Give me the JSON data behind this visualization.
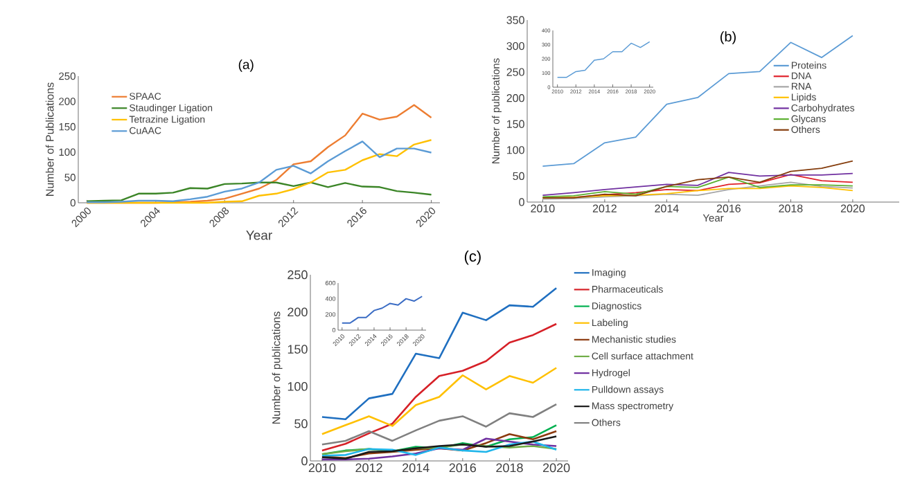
{
  "chart_data": [
    {
      "type": "line",
      "title": "(a)",
      "xlabel": "Year",
      "ylabel": "Number of Publications",
      "x": [
        2000,
        2001,
        2002,
        2003,
        2004,
        2005,
        2006,
        2007,
        2008,
        2009,
        2010,
        2011,
        2012,
        2013,
        2014,
        2015,
        2016,
        2017,
        2018,
        2019,
        2020
      ],
      "xlim": [
        1999.5,
        2020.5
      ],
      "ylim": [
        0,
        250
      ],
      "xticks": [
        2000,
        2004,
        2008,
        2012,
        2016,
        2020
      ],
      "yticks": [
        0,
        50,
        100,
        150,
        200,
        250
      ],
      "legend": "top left",
      "series": [
        {
          "name": "SPAAC",
          "color": "#ed7d31",
          "values": [
            0,
            0,
            0,
            0,
            0,
            1,
            2,
            4,
            8,
            18,
            28,
            45,
            76,
            82,
            110,
            133,
            176,
            164,
            170,
            193,
            168
          ]
        },
        {
          "name": "Staudinger Ligation",
          "color": "#3b8527",
          "values": [
            3,
            4,
            5,
            18,
            18,
            20,
            29,
            28,
            37,
            38,
            40,
            40,
            33,
            40,
            31,
            39,
            32,
            31,
            23,
            20,
            16
          ]
        },
        {
          "name": "Tetrazine Ligation",
          "color": "#ffc000",
          "values": [
            0,
            0,
            0,
            0,
            0,
            0,
            0,
            0,
            2,
            3,
            14,
            18,
            27,
            40,
            60,
            65,
            84,
            96,
            92,
            115,
            124
          ]
        },
        {
          "name": "CuAAC",
          "color": "#5b9bd5",
          "values": [
            1,
            1,
            2,
            4,
            4,
            3,
            7,
            12,
            22,
            28,
            40,
            65,
            73,
            58,
            82,
            102,
            121,
            90,
            107,
            107,
            99
          ]
        }
      ]
    },
    {
      "type": "line",
      "title": "(b)",
      "xlabel": "Year",
      "ylabel": "Number of publications",
      "x": [
        2010,
        2011,
        2012,
        2013,
        2014,
        2015,
        2016,
        2017,
        2018,
        2019,
        2020
      ],
      "xlim": [
        2009.5,
        2021.5
      ],
      "ylim": [
        0,
        350
      ],
      "xticks": [
        2010,
        2012,
        2014,
        2016,
        2018,
        2020
      ],
      "yticks": [
        0,
        50,
        100,
        150,
        200,
        250,
        300,
        350
      ],
      "legend": "right",
      "series": [
        {
          "name": "Proteins",
          "color": "#5b9bd5",
          "values": [
            69,
            74,
            114,
            125,
            188,
            201,
            247,
            251,
            307,
            278,
            320
          ]
        },
        {
          "name": "DNA",
          "color": "#e0202a",
          "values": [
            8,
            9,
            14,
            18,
            24,
            22,
            34,
            37,
            53,
            41,
            38
          ]
        },
        {
          "name": "RNA",
          "color": "#a5a5a5",
          "values": [
            6,
            7,
            10,
            12,
            15,
            13,
            24,
            null,
            38,
            30,
            27
          ]
        },
        {
          "name": "Lipids",
          "color": "#ffc000",
          "values": [
            8,
            9,
            12,
            13,
            16,
            22,
            26,
            26,
            31,
            28,
            22
          ]
        },
        {
          "name": "Carbohydrates",
          "color": "#7030a0",
          "values": [
            13,
            18,
            24,
            29,
            34,
            32,
            57,
            50,
            52,
            52,
            55
          ]
        },
        {
          "name": "Glycans",
          "color": "#5ab030",
          "values": [
            10,
            12,
            20,
            15,
            30,
            28,
            48,
            28,
            33,
            33,
            31
          ]
        },
        {
          "name": "Others",
          "color": "#843c0c",
          "values": [
            8,
            8,
            15,
            12,
            30,
            43,
            48,
            38,
            59,
            65,
            79
          ]
        }
      ]
    },
    {
      "type": "line",
      "x": [
        2010,
        2011,
        2012,
        2013,
        2014,
        2015,
        2016,
        2017,
        2018,
        2019,
        2020
      ],
      "xlim": [
        2009.5,
        2020.4
      ],
      "ylim": [
        0,
        400
      ],
      "xticks": [
        2010,
        2012,
        2014,
        2016,
        2018,
        2020
      ],
      "yticks": [
        0,
        100,
        200,
        300,
        400
      ],
      "series": [
        {
          "color": "#5b9bd5",
          "values": [
            70,
            70,
            110,
            120,
            190,
            200,
            250,
            250,
            310,
            280,
            320
          ]
        }
      ]
    },
    {
      "type": "line",
      "title": "(c)",
      "ylabel": "Number of publications",
      "x": [
        2010,
        2011,
        2012,
        2013,
        2014,
        2015,
        2016,
        2017,
        2018,
        2019,
        2020
      ],
      "xlim": [
        2009.5,
        2020.5
      ],
      "ylim": [
        0,
        250
      ],
      "xticks": [
        2010,
        2012,
        2014,
        2016,
        2018,
        2020
      ],
      "yticks": [
        0,
        50,
        100,
        150,
        200,
        250
      ],
      "legend": "right",
      "series": [
        {
          "name": "Imaging",
          "color": "#1f6fc0",
          "values": [
            59,
            56,
            84,
            90,
            144,
            138,
            199,
            189,
            209,
            207,
            232
          ]
        },
        {
          "name": "Pharmaceuticals",
          "color": "#d62027",
          "values": [
            14,
            23,
            37,
            50,
            86,
            114,
            121,
            134,
            159,
            169,
            184
          ]
        },
        {
          "name": "Diagnostics",
          "color": "#00b050",
          "values": [
            9,
            14,
            16,
            13,
            19,
            17,
            24,
            19,
            29,
            32,
            48
          ]
        },
        {
          "name": "Labeling",
          "color": "#ffc000",
          "values": [
            36,
            48,
            60,
            47,
            75,
            86,
            115,
            96,
            114,
            105,
            125
          ]
        },
        {
          "name": "Mechanistic studies",
          "color": "#8b3a0f",
          "values": [
            6,
            4,
            10,
            12,
            15,
            17,
            14,
            24,
            36,
            29,
            40
          ]
        },
        {
          "name": "Cell surface attachment",
          "color": "#70ad47",
          "values": [
            9,
            13,
            16,
            13,
            17,
            18,
            22,
            20,
            18,
            20,
            16
          ]
        },
        {
          "name": "Hydrogel",
          "color": "#7030a0",
          "values": [
            2,
            2,
            3,
            6,
            10,
            17,
            15,
            30,
            26,
            22,
            20
          ]
        },
        {
          "name": "Pulldown assays",
          "color": "#1fb5ea",
          "values": [
            7,
            8,
            16,
            15,
            8,
            18,
            14,
            12,
            22,
            26,
            15
          ]
        },
        {
          "name": "Mass spectrometry",
          "color": "#1a1a1a",
          "values": [
            5,
            3,
            12,
            13,
            17,
            20,
            22,
            19,
            20,
            26,
            33
          ]
        },
        {
          "name": "Others",
          "color": "#808080",
          "values": [
            22,
            27,
            40,
            27,
            41,
            54,
            60,
            46,
            64,
            59,
            76
          ]
        }
      ]
    },
    {
      "type": "line",
      "x": [
        2010,
        2011,
        2012,
        2013,
        2014,
        2015,
        2016,
        2017,
        2018,
        2019,
        2020
      ],
      "xlim": [
        2009.5,
        2020.5
      ],
      "ylim": [
        0,
        600
      ],
      "xticks": [
        2010,
        2012,
        2014,
        2016,
        2018,
        2020
      ],
      "yticks": [
        0,
        200,
        400,
        600
      ],
      "series": [
        {
          "color": "#3a6cc4",
          "values": [
            90,
            90,
            160,
            160,
            250,
            280,
            340,
            320,
            400,
            370,
            430
          ]
        }
      ]
    }
  ]
}
